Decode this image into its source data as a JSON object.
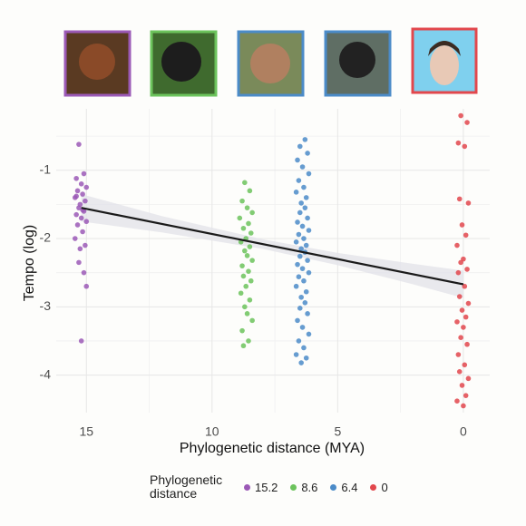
{
  "chart_data": {
    "type": "scatter",
    "x_label": "Phylogenetic distance (MYA)",
    "y_label": "Tempo (log)",
    "xlim": [
      16.2,
      -1.05
    ],
    "ylim": [
      -4.55,
      -0.1
    ],
    "xticks": [
      15,
      10,
      5,
      0
    ],
    "yticks": [
      -1,
      -2,
      -3,
      -4
    ],
    "x_minor_ticks": [
      12.5,
      7.5,
      2.5
    ],
    "y_minor_ticks": [
      -0.5,
      -1.5,
      -2.5,
      -3.5
    ],
    "grid": true,
    "legend_title": "Phylogenetic distance",
    "legend_position": "bottom",
    "series": [
      {
        "name": "15.2",
        "color": "#9b59b6",
        "x": [
          15.3,
          15.1,
          15.4,
          15.2,
          15.0,
          15.35,
          15.15,
          15.45,
          15.05,
          15.25,
          15.3,
          15.1,
          15.4,
          15.2,
          15.0,
          15.35,
          15.15,
          15.45,
          15.05,
          15.25,
          15.3,
          15.1,
          15.0,
          15.2,
          15.4,
          15.15
        ],
        "values": [
          -0.62,
          -1.05,
          -1.12,
          -1.2,
          -1.25,
          -1.3,
          -1.35,
          -1.4,
          -1.45,
          -1.5,
          -1.55,
          -1.6,
          -1.65,
          -1.7,
          -1.75,
          -1.8,
          -1.9,
          -2.0,
          -2.1,
          -2.15,
          -2.35,
          -2.5,
          -2.7,
          -3.5,
          -1.38,
          -1.58
        ]
      },
      {
        "name": "8.6",
        "color": "#6cc35c",
        "x": [
          8.7,
          8.5,
          8.8,
          8.6,
          8.4,
          8.9,
          8.55,
          8.75,
          8.45,
          8.65,
          8.85,
          8.5,
          8.7,
          8.6,
          8.4,
          8.8,
          8.55,
          8.75,
          8.45,
          8.65,
          8.85,
          8.5,
          8.7,
          8.6,
          8.4,
          8.8,
          8.55,
          8.75
        ],
        "values": [
          -1.18,
          -1.3,
          -1.45,
          -1.55,
          -1.62,
          -1.7,
          -1.78,
          -1.85,
          -1.92,
          -2.0,
          -2.05,
          -2.12,
          -2.18,
          -2.25,
          -2.32,
          -2.4,
          -2.48,
          -2.55,
          -2.62,
          -2.7,
          -2.8,
          -2.9,
          -3.0,
          -3.1,
          -3.2,
          -3.35,
          -3.5,
          -3.57
        ]
      },
      {
        "name": "6.4",
        "color": "#4b8bc8",
        "x": [
          6.3,
          6.5,
          6.2,
          6.6,
          6.4,
          6.15,
          6.55,
          6.35,
          6.65,
          6.25,
          6.45,
          6.3,
          6.5,
          6.2,
          6.6,
          6.4,
          6.15,
          6.55,
          6.35,
          6.65,
          6.25,
          6.45,
          6.3,
          6.5,
          6.2,
          6.6,
          6.4,
          6.15,
          6.55,
          6.35,
          6.65,
          6.25,
          6.45,
          6.3,
          6.5,
          6.2,
          6.6,
          6.4,
          6.15,
          6.55,
          6.35,
          6.65,
          6.25,
          6.45
        ],
        "values": [
          -0.55,
          -0.65,
          -0.75,
          -0.85,
          -0.95,
          -1.05,
          -1.15,
          -1.25,
          -1.32,
          -1.4,
          -1.48,
          -1.55,
          -1.62,
          -1.7,
          -1.76,
          -1.82,
          -1.88,
          -1.94,
          -2.0,
          -2.05,
          -2.1,
          -2.15,
          -2.2,
          -2.26,
          -2.32,
          -2.38,
          -2.44,
          -2.5,
          -2.56,
          -2.62,
          -2.7,
          -2.78,
          -2.86,
          -2.94,
          -3.02,
          -3.1,
          -3.2,
          -3.3,
          -3.4,
          -3.5,
          -3.6,
          -3.7,
          -3.75,
          -3.82
        ]
      },
      {
        "name": "0",
        "color": "#e2474c",
        "x": [
          0.1,
          -0.15,
          0.2,
          -0.05,
          0.15,
          -0.2,
          0.05,
          -0.1,
          0.25,
          0,
          0.1,
          -0.15,
          0.2,
          -0.05,
          0.15,
          -0.2,
          0.05,
          -0.1,
          0.25,
          0,
          0.1,
          -0.15,
          0.2,
          -0.05,
          0.15,
          -0.2,
          0.05,
          -0.1,
          0.25,
          0
        ],
        "values": [
          -0.2,
          -0.3,
          -0.6,
          -0.65,
          -1.42,
          -1.48,
          -1.8,
          -1.95,
          -2.1,
          -2.3,
          -2.35,
          -2.45,
          -2.5,
          -2.7,
          -2.85,
          -2.95,
          -3.05,
          -3.15,
          -3.22,
          -3.3,
          -3.45,
          -3.55,
          -3.7,
          -3.85,
          -3.95,
          -4.05,
          -4.15,
          -4.3,
          -4.38,
          -4.45
        ]
      }
    ],
    "fit": {
      "color": "#1a1a1a",
      "x": [
        15.2,
        0
      ],
      "values": [
        -1.55,
        -2.67
      ]
    },
    "ribbon": {
      "color": "#e4e4ea",
      "x": [
        15.2,
        12,
        8,
        5,
        2,
        0
      ],
      "upper": [
        -1.35,
        -1.67,
        -2.01,
        -2.21,
        -2.37,
        -2.47
      ],
      "lower": [
        -1.75,
        -1.91,
        -2.15,
        -2.39,
        -2.67,
        -2.87
      ]
    }
  }
}
